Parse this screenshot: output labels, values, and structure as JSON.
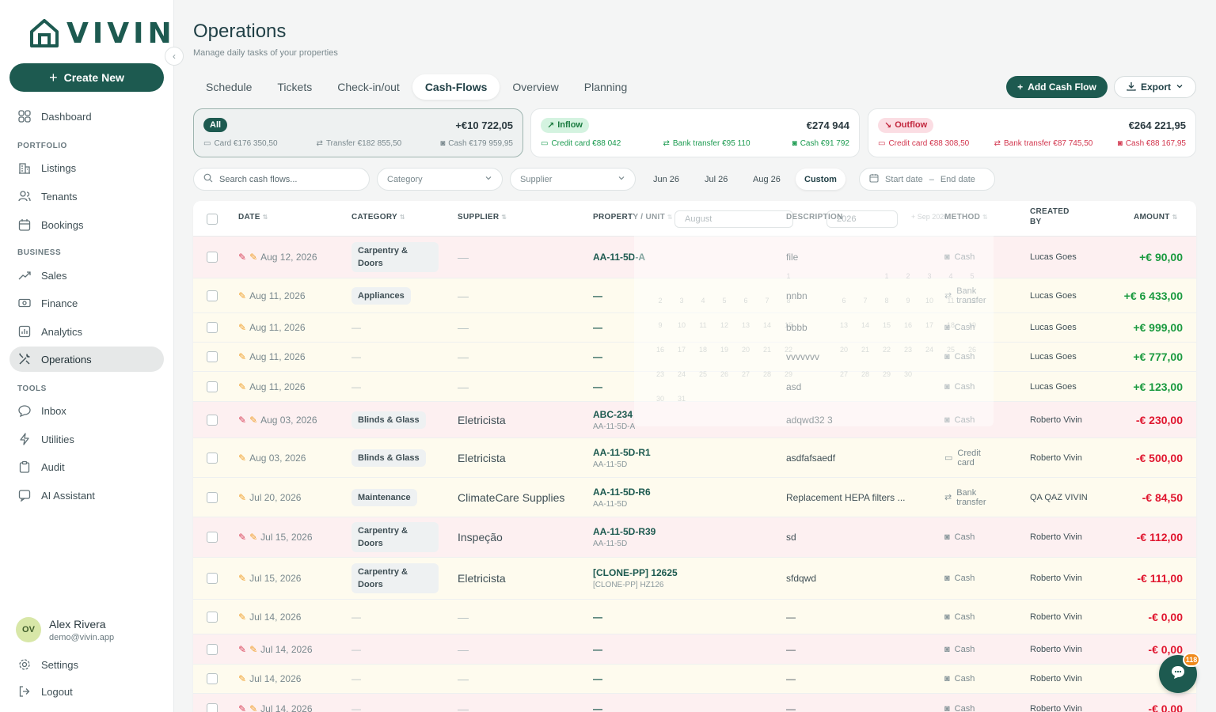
{
  "brand": {
    "name": "VIVIN",
    "color": "#1d5a50"
  },
  "sidebar": {
    "create_label": "Create New",
    "sections": {
      "portfolio": "PORTFOLIO",
      "business": "BUSINESS",
      "tools": "TOOLS"
    },
    "items": {
      "dashboard": "Dashboard",
      "listings": "Listings",
      "tenants": "Tenants",
      "bookings": "Bookings",
      "sales": "Sales",
      "finance": "Finance",
      "analytics": "Analytics",
      "operations": "Operations",
      "inbox": "Inbox",
      "utilities": "Utilities",
      "audit": "Audit",
      "ai_assistant": "AI Assistant"
    },
    "user": {
      "initials": "OV",
      "name": "Alex Rivera",
      "email": "demo@vivin.app"
    },
    "settings": "Settings",
    "logout": "Logout"
  },
  "header": {
    "title": "Operations",
    "subtitle": "Manage daily tasks of your properties"
  },
  "tabs": [
    "Schedule",
    "Tickets",
    "Check-in/out",
    "Cash-Flows",
    "Overview",
    "Planning"
  ],
  "active_tab": "Cash-Flows",
  "actions": {
    "add": "Add Cash Flow",
    "export": "Export"
  },
  "summary": {
    "all": {
      "label": "All",
      "total": "+€10 722,05",
      "card": "Card €176 350,50",
      "transfer": "Transfer €182 855,50",
      "cash": "Cash €179 959,95"
    },
    "inflow": {
      "label": "Inflow",
      "total": "€274 944",
      "card": "Credit card €88 042",
      "transfer": "Bank transfer €95 110",
      "cash": "Cash €91 792"
    },
    "outflow": {
      "label": "Outflow",
      "total": "€264 221,95",
      "card": "Credit card €88 308,50",
      "transfer": "Bank transfer €87 745,50",
      "cash": "Cash €88 167,95"
    }
  },
  "filters": {
    "search_placeholder": "Search cash flows...",
    "category": "Category",
    "supplier": "Supplier",
    "periods": [
      "Jun 26",
      "Jul 26",
      "Aug 26",
      "Custom"
    ],
    "active_period": "Custom",
    "start_date": "Start date",
    "separator": "–",
    "end_date": "End date"
  },
  "picker": {
    "month": "August",
    "year": "2026",
    "next_label": "+ Sep 2026"
  },
  "table": {
    "headers": {
      "date": "DATE",
      "category": "CATEGORY",
      "supplier": "SUPPLIER",
      "property": "PROPERTY / UNIT",
      "description": "DESCRIPTION",
      "method": "METHOD",
      "created_by_1": "CREATED",
      "created_by_2": "BY",
      "amount": "AMOUNT"
    },
    "rows": [
      {
        "date": "Aug 12, 2026",
        "clip": true,
        "category": "Carpentry & Doors",
        "supplier": "—",
        "property": "AA-11-5D-A",
        "unit": "",
        "description": "file",
        "method": "Cash",
        "created_by": "Lucas Goes",
        "amount": "+€ 90,00",
        "sign": "pos",
        "bg": "pink"
      },
      {
        "date": "Aug 11, 2026",
        "clip": false,
        "category": "Appliances",
        "supplier": "—",
        "property": "—",
        "unit": "",
        "description": "nnbn",
        "method": "Bank transfer",
        "created_by": "Lucas Goes",
        "amount": "+€ 6 433,00",
        "sign": "pos",
        "bg": "cream"
      },
      {
        "date": "Aug 11, 2026",
        "clip": false,
        "category": "—",
        "supplier": "—",
        "property": "—",
        "unit": "",
        "description": "bbbb",
        "method": "Cash",
        "created_by": "Lucas Goes",
        "amount": "+€ 999,00",
        "sign": "pos",
        "bg": "cream"
      },
      {
        "date": "Aug 11, 2026",
        "clip": false,
        "category": "—",
        "supplier": "—",
        "property": "—",
        "unit": "",
        "description": "vvvvvvv",
        "method": "Cash",
        "created_by": "Lucas Goes",
        "amount": "+€ 777,00",
        "sign": "pos",
        "bg": "cream"
      },
      {
        "date": "Aug 11, 2026",
        "clip": false,
        "category": "—",
        "supplier": "—",
        "property": "—",
        "unit": "",
        "description": "asd",
        "method": "Cash",
        "created_by": "Lucas Goes",
        "amount": "+€ 123,00",
        "sign": "pos",
        "bg": "cream"
      },
      {
        "date": "Aug 03, 2026",
        "clip": true,
        "category": "Blinds & Glass",
        "supplier": "Eletricista",
        "property": "ABC-234",
        "unit": "AA-11-5D-A",
        "description": "adqwd32 3",
        "method": "Cash",
        "created_by": "Roberto Vivin",
        "amount": "-€ 230,00",
        "sign": "neg",
        "bg": "pink"
      },
      {
        "date": "Aug 03, 2026",
        "clip": false,
        "category": "Blinds & Glass",
        "supplier": "Eletricista",
        "property": "AA-11-5D-R1",
        "unit": "AA-11-5D",
        "description": "asdfafsaedf",
        "method": "Credit card",
        "created_by": "Roberto Vivin",
        "amount": "-€ 500,00",
        "sign": "neg",
        "bg": "cream"
      },
      {
        "date": "Jul 20, 2026",
        "clip": false,
        "category": "Maintenance",
        "supplier": "ClimateCare Supplies",
        "property": "AA-11-5D-R6",
        "unit": "AA-11-5D",
        "description": "Replacement HEPA filters ...",
        "method": "Bank transfer",
        "created_by": "QA QAZ VIVIN",
        "amount": "-€ 84,50",
        "sign": "neg",
        "bg": "cream"
      },
      {
        "date": "Jul 15, 2026",
        "clip": true,
        "category": "Carpentry & Doors",
        "supplier": "Inspeção",
        "property": "AA-11-5D-R39",
        "unit": "AA-11-5D",
        "description": "sd",
        "method": "Cash",
        "created_by": "Roberto Vivin",
        "amount": "-€ 112,00",
        "sign": "neg",
        "bg": "pink"
      },
      {
        "date": "Jul 15, 2026",
        "clip": false,
        "category": "Carpentry & Doors",
        "supplier": "Eletricista",
        "property": "[CLONE-PP] 12625",
        "unit": "[CLONE-PP] HZ126",
        "description": "sfdqwd",
        "method": "Cash",
        "created_by": "Roberto Vivin",
        "amount": "-€ 111,00",
        "sign": "neg",
        "bg": "cream"
      },
      {
        "date": "Jul 14, 2026",
        "clip": false,
        "category": "—",
        "supplier": "—",
        "property": "—",
        "unit": "",
        "description": "—",
        "method": "Cash",
        "created_by": "Roberto Vivin",
        "amount": "-€ 0,00",
        "sign": "neg",
        "bg": "cream"
      },
      {
        "date": "Jul 14, 2026",
        "clip": true,
        "category": "—",
        "supplier": "—",
        "property": "—",
        "unit": "",
        "description": "—",
        "method": "Cash",
        "created_by": "Roberto Vivin",
        "amount": "-€ 0,00",
        "sign": "neg",
        "bg": "pink"
      },
      {
        "date": "Jul 14, 2026",
        "clip": false,
        "category": "—",
        "supplier": "—",
        "property": "—",
        "unit": "",
        "description": "—",
        "method": "Cash",
        "created_by": "Roberto Vivin",
        "amount": "-€",
        "sign": "neg",
        "bg": "cream"
      },
      {
        "date": "Jul 14, 2026",
        "clip": true,
        "category": "—",
        "supplier": "—",
        "property": "—",
        "unit": "",
        "description": "—",
        "method": "Cash",
        "created_by": "Roberto Vivin",
        "amount": "-€ 0,00",
        "sign": "neg",
        "bg": "pink"
      }
    ]
  },
  "chat": {
    "badge": "118"
  },
  "colors": {
    "positive": "#1a9a3f",
    "negative": "#e0162f",
    "row_pink": "#fdf0f1",
    "row_cream": "#fefbee"
  }
}
